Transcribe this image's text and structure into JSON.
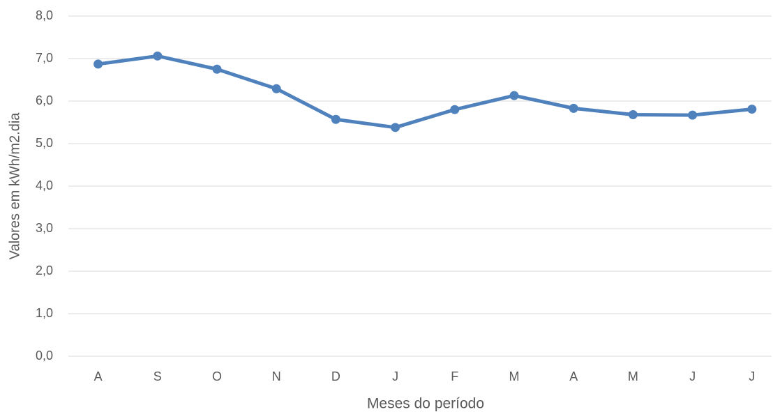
{
  "chart_data": {
    "type": "line",
    "x_label": "Meses do período",
    "y_label": "Valores em kWh/m2.dia",
    "categories": [
      "A",
      "S",
      "O",
      "N",
      "D",
      "J",
      "F",
      "M",
      "A",
      "M",
      "J",
      "J"
    ],
    "values": [
      6.87,
      7.06,
      6.75,
      6.29,
      5.57,
      5.38,
      5.8,
      6.13,
      5.83,
      5.68,
      5.67,
      5.81
    ],
    "color": "#4f81bd",
    "ylim": [
      0,
      8
    ],
    "yticks": [
      {
        "value": 0,
        "label": "0,0"
      },
      {
        "value": 1,
        "label": "1,0"
      },
      {
        "value": 2,
        "label": "2,0"
      },
      {
        "value": 3,
        "label": "3,0"
      },
      {
        "value": 4,
        "label": "4,0"
      },
      {
        "value": 5,
        "label": "5,0"
      },
      {
        "value": 6,
        "label": "6,0"
      },
      {
        "value": 7,
        "label": "7,0"
      },
      {
        "value": 8,
        "label": "8,0"
      }
    ],
    "grid": true
  }
}
